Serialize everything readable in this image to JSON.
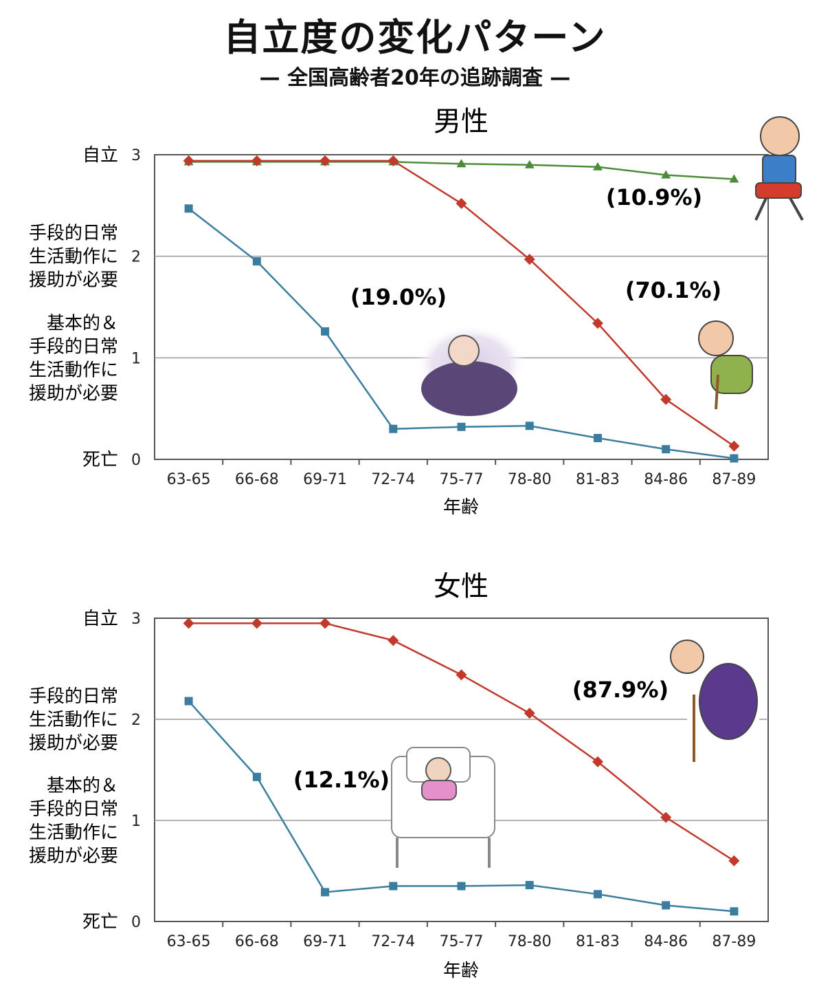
{
  "title": "自立度の変化パターン",
  "subtitle": "— 全国高齢者20年の追跡調査 —",
  "colors": {
    "red": "#c0392b",
    "blue": "#3b7d9e",
    "green": "#4a8c3a",
    "grid": "#9a9a9a"
  },
  "chart_data": [
    {
      "type": "line",
      "title": "男性",
      "xlabel": "年齢",
      "categories": [
        "63-65",
        "66-68",
        "69-71",
        "72-74",
        "75-77",
        "78-80",
        "81-83",
        "84-86",
        "87-89"
      ],
      "ylim": [
        0,
        3
      ],
      "yticks": [
        0,
        1,
        2,
        3
      ],
      "ytick_labels": [
        "死亡",
        "基本的＆\n手段的日常\n生活動作に\n援助が必要",
        "手段的日常\n生活動作に\n援助が必要",
        "自立"
      ],
      "grid": true,
      "series": [
        {
          "color": "#4a8c3a",
          "marker": "triangle",
          "annotation": "(10.9%)",
          "values": [
            2.93,
            2.93,
            2.93,
            2.93,
            2.91,
            2.9,
            2.88,
            2.8,
            2.76
          ]
        },
        {
          "color": "#c0392b",
          "marker": "diamond",
          "annotation": "(70.1%)",
          "values": [
            2.94,
            2.94,
            2.94,
            2.94,
            2.52,
            1.97,
            1.34,
            0.59,
            0.13
          ]
        },
        {
          "color": "#3b7d9e",
          "marker": "square",
          "annotation": "(19.0%)",
          "values": [
            2.47,
            1.95,
            1.26,
            0.3,
            0.32,
            0.33,
            0.21,
            0.1,
            0.01
          ]
        }
      ]
    },
    {
      "type": "line",
      "title": "女性",
      "xlabel": "年齢",
      "categories": [
        "63-65",
        "66-68",
        "69-71",
        "72-74",
        "75-77",
        "78-80",
        "81-83",
        "84-86",
        "87-89"
      ],
      "ylim": [
        0,
        3
      ],
      "yticks": [
        0,
        1,
        2,
        3
      ],
      "ytick_labels": [
        "死亡",
        "基本的＆\n手段的日常\n生活動作に\n援助が必要",
        "手段的日常\n生活動作に\n援助が必要",
        "自立"
      ],
      "grid": true,
      "series": [
        {
          "color": "#c0392b",
          "marker": "diamond",
          "annotation": "(87.9%)",
          "values": [
            2.95,
            2.95,
            2.95,
            2.78,
            2.44,
            2.06,
            1.58,
            1.03,
            0.6
          ]
        },
        {
          "color": "#3b7d9e",
          "marker": "square",
          "annotation": "(12.1%)",
          "values": [
            2.18,
            1.43,
            0.29,
            0.35,
            0.35,
            0.36,
            0.27,
            0.16,
            0.1
          ]
        }
      ]
    }
  ]
}
